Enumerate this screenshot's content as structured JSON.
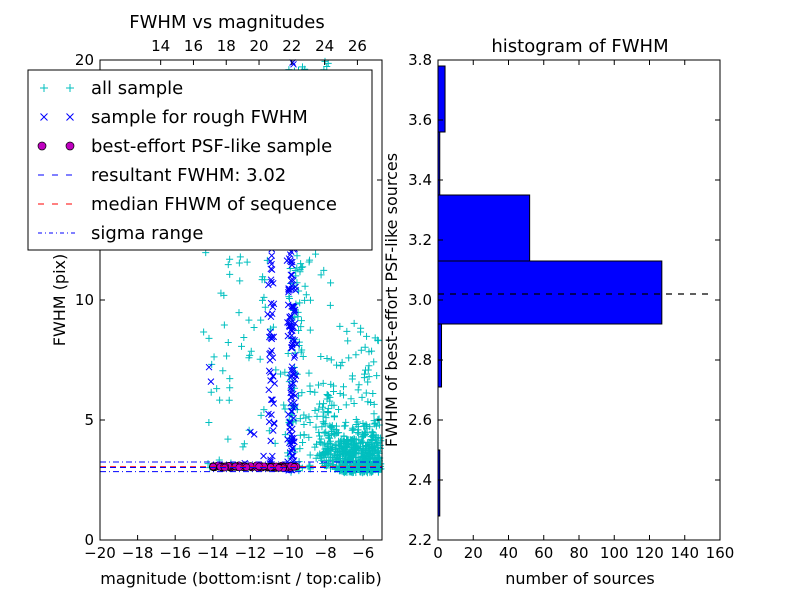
{
  "chart_data": [
    {
      "type": "scatter",
      "title": "FWHM vs magnitudes",
      "xlabel": "magnitude (bottom:isnt / top:calib)",
      "ylabel": "FWHM (pix)",
      "xlim": [
        -20,
        -5
      ],
      "ylim": [
        0,
        20
      ],
      "xticks": [
        "−20",
        "−18",
        "−16",
        "−14",
        "−12",
        "−10",
        "−8",
        "−6"
      ],
      "yticks": [
        "0",
        "5",
        "10",
        "15",
        "20"
      ],
      "top_xlim": [
        10.3,
        27.5
      ],
      "top_xticks": [
        "14",
        "16",
        "18",
        "20",
        "22",
        "24",
        "26"
      ],
      "resultant_fwhm": 3.02,
      "median_fwhm": 3.05,
      "sigma_range": [
        2.85,
        3.25
      ],
      "grid": false,
      "legend_position": "upper-left",
      "legend": [
        {
          "label": "all sample",
          "marker": "+",
          "color": "#00bfbf"
        },
        {
          "label": "sample for rough FWHM",
          "marker": "x",
          "color": "#0000ff"
        },
        {
          "label": "best-effort PSF-like sample",
          "marker": "o",
          "color": "#bf00bf"
        },
        {
          "label": "resultant FWHM: 3.02",
          "marker": "--",
          "color": "#0000ff"
        },
        {
          "label": "median FHWM of sequence",
          "marker": "--",
          "color": "#ff0000"
        },
        {
          "label": "sigma range",
          "marker": "-.",
          "color": "#0000ff"
        }
      ]
    },
    {
      "type": "bar",
      "orientation": "horizontal",
      "title": "histogram of FWHM",
      "xlabel": "number of sources",
      "ylabel": "FWHM of best-effort PSF-like sources",
      "xlim": [
        0,
        160
      ],
      "ylim": [
        2.2,
        3.8
      ],
      "xticks": [
        "0",
        "20",
        "40",
        "60",
        "80",
        "100",
        "120",
        "140",
        "160"
      ],
      "yticks": [
        "2.2",
        "2.4",
        "2.6",
        "2.8",
        "3.0",
        "3.2",
        "3.4",
        "3.6",
        "3.8"
      ],
      "bins": [
        {
          "from": 2.28,
          "to": 2.5,
          "count": 1
        },
        {
          "from": 2.5,
          "to": 2.71,
          "count": 0
        },
        {
          "from": 2.71,
          "to": 2.92,
          "count": 2
        },
        {
          "from": 2.92,
          "to": 3.13,
          "count": 127
        },
        {
          "from": 3.13,
          "to": 3.35,
          "count": 52
        },
        {
          "from": 3.35,
          "to": 3.56,
          "count": 1
        },
        {
          "from": 3.56,
          "to": 3.78,
          "count": 4
        }
      ],
      "reference_line": 3.02,
      "bar_color": "#0000ff"
    }
  ]
}
